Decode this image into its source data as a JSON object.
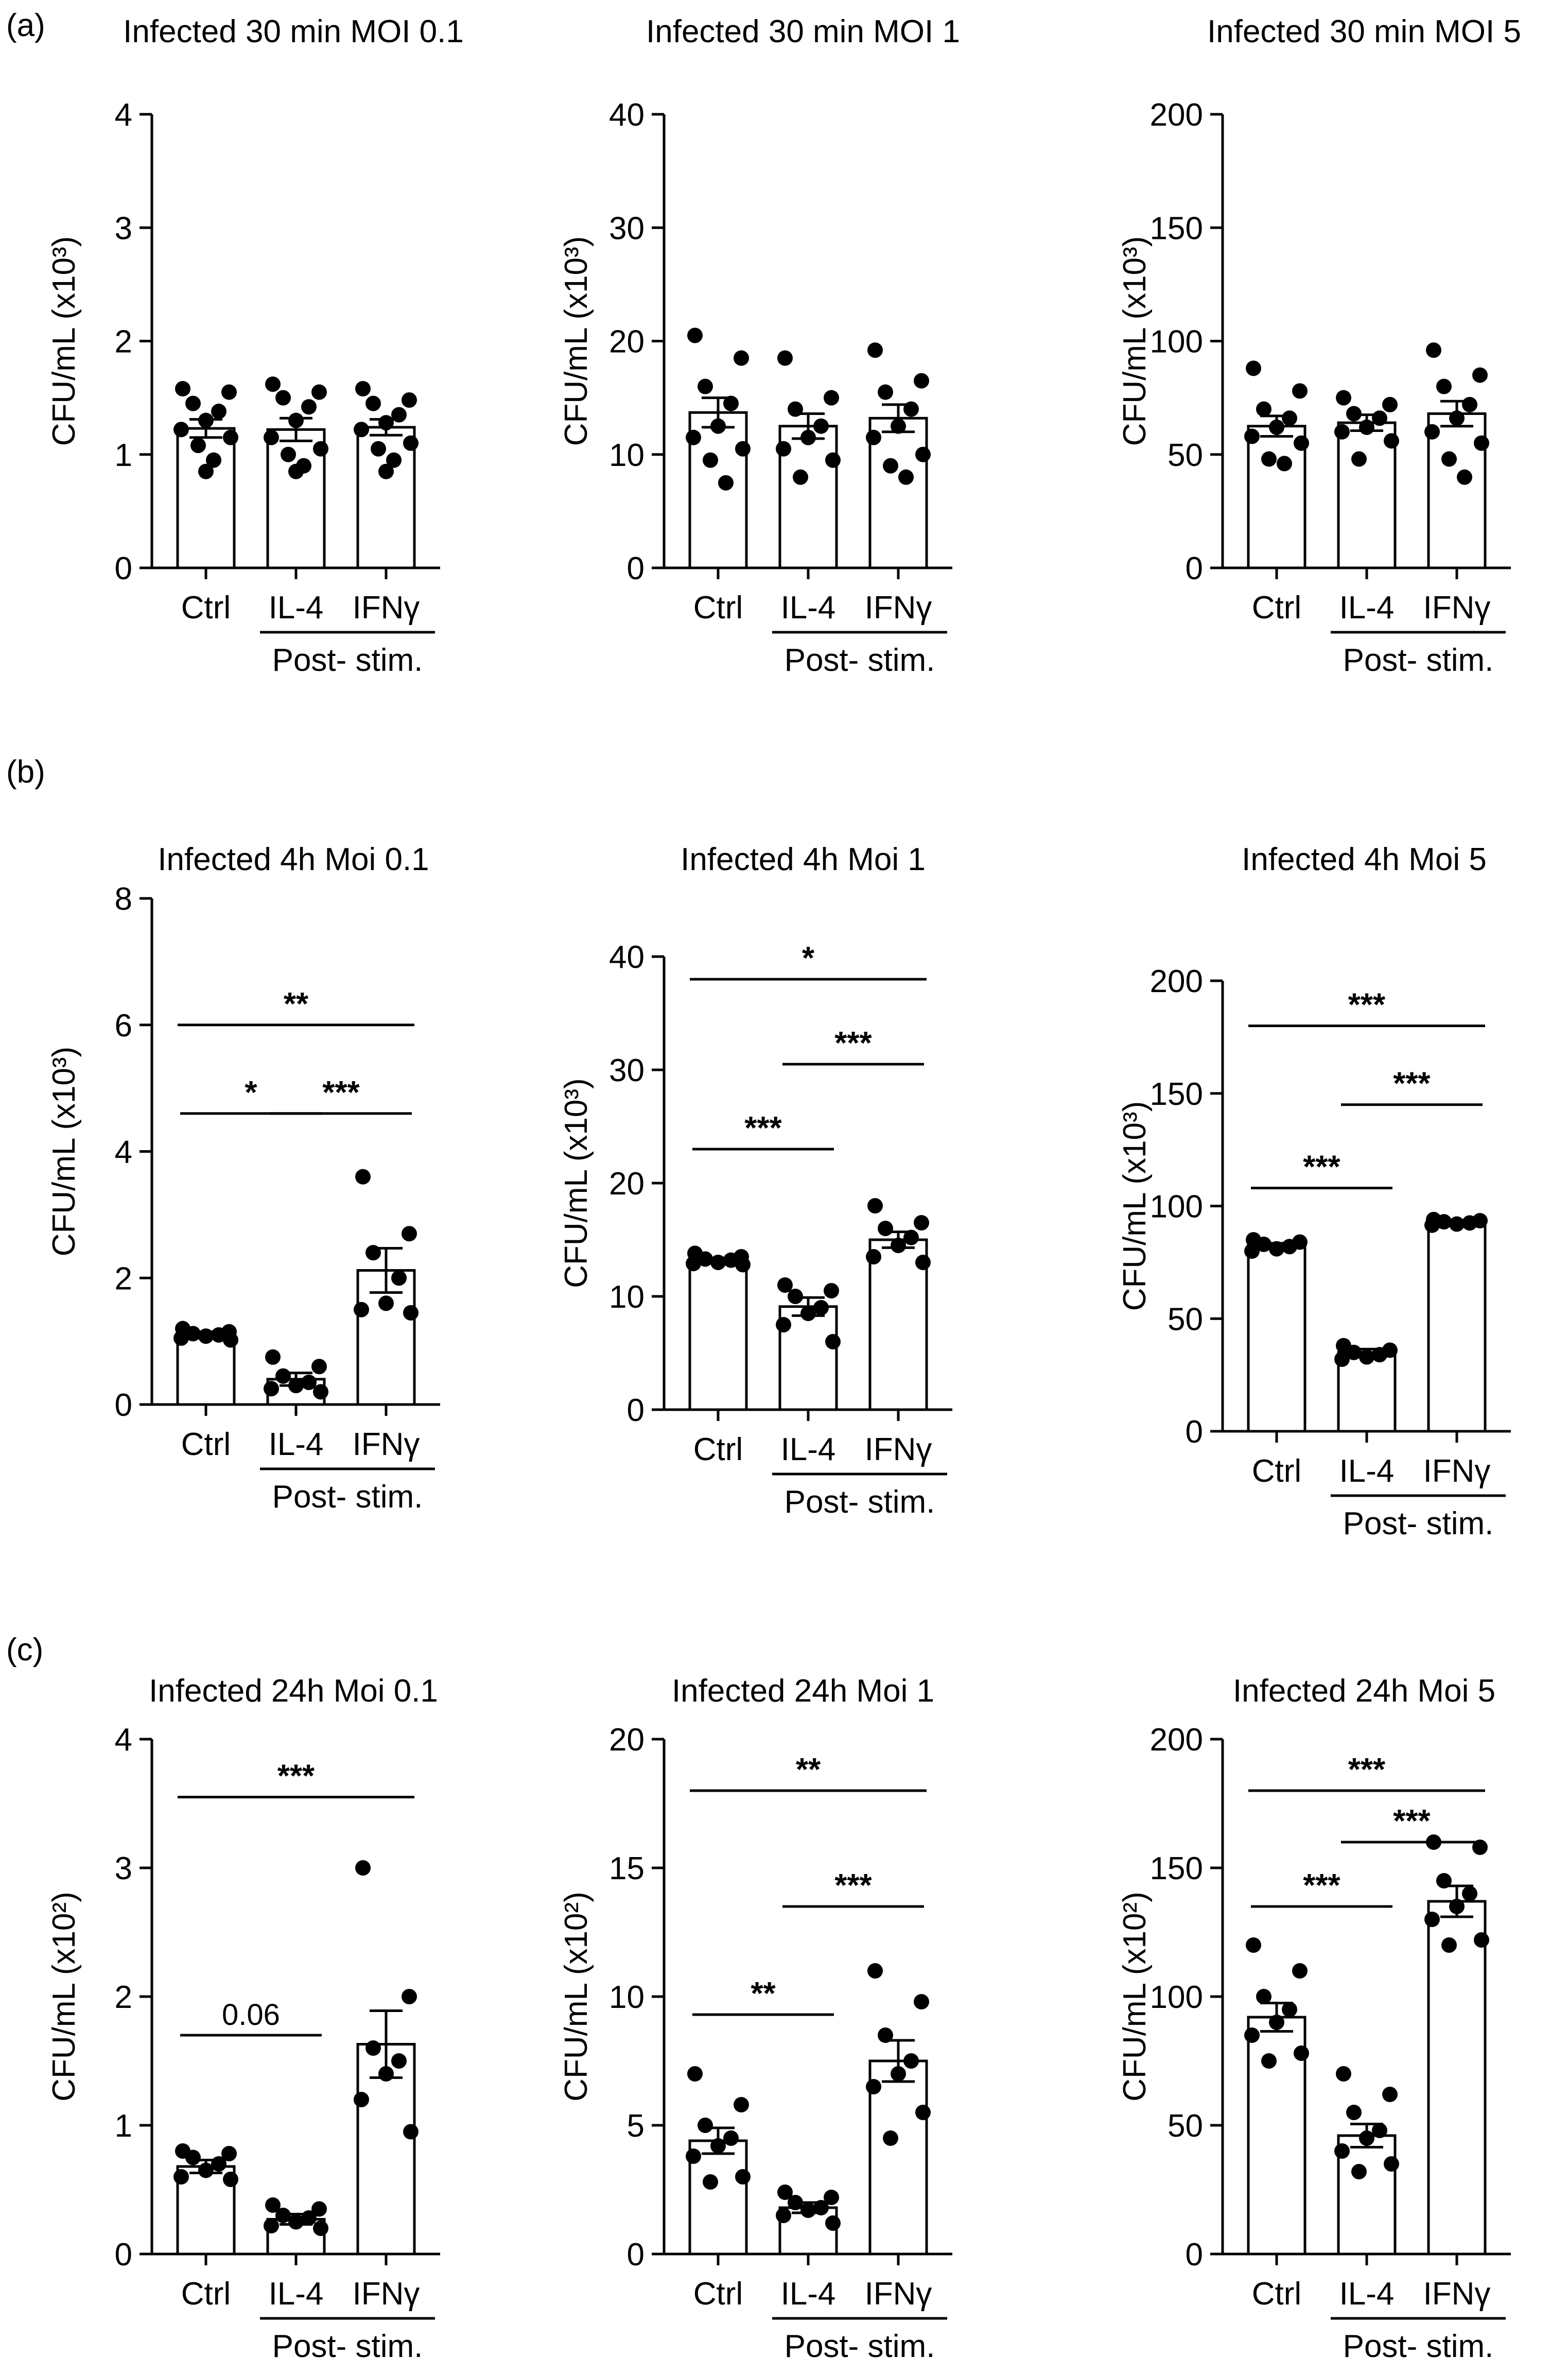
{
  "panel_labels": [
    "(a)",
    "(b)",
    "(c)"
  ],
  "group_label": "Post- stim.",
  "chart_data": [
    {
      "type": "bar",
      "title": "Infected 30 min MOI 0.1",
      "ylabel": "CFU/mL (x10³)",
      "ylim": [
        0,
        4
      ],
      "yticks": [
        "0",
        "1",
        "2",
        "3",
        "4"
      ],
      "categories": [
        "Ctrl",
        "IL-4",
        "IFNγ"
      ],
      "values": [
        1.23,
        1.22,
        1.24
      ],
      "errors": [
        0.08,
        0.1,
        0.07
      ],
      "points": [
        [
          1.58,
          1.55,
          1.45,
          1.38,
          1.3,
          1.22,
          1.15,
          1.08,
          0.95,
          0.85
        ],
        [
          1.62,
          1.55,
          1.5,
          1.42,
          1.3,
          1.15,
          1.05,
          1.0,
          0.9,
          0.85
        ],
        [
          1.58,
          1.48,
          1.45,
          1.35,
          1.28,
          1.22,
          1.1,
          1.05,
          0.95,
          0.85
        ]
      ],
      "significance": []
    },
    {
      "type": "bar",
      "title": "Infected 30 min MOI 1",
      "ylabel": "CFU/mL (x10³)",
      "ylim": [
        0,
        40
      ],
      "yticks": [
        "0",
        "10",
        "20",
        "30",
        "40"
      ],
      "categories": [
        "Ctrl",
        "IL-4",
        "IFNγ"
      ],
      "values": [
        13.7,
        12.5,
        13.2
      ],
      "errors": [
        1.3,
        1.1,
        1.2
      ],
      "points": [
        [
          20.5,
          18.5,
          16.0,
          14.5,
          12.5,
          11.5,
          10.5,
          9.5,
          7.5
        ],
        [
          18.5,
          15.0,
          14.0,
          12.5,
          11.5,
          10.5,
          9.5,
          8.0
        ],
        [
          19.2,
          16.5,
          15.5,
          14.0,
          12.5,
          11.5,
          10.0,
          9.0,
          8.0
        ]
      ],
      "significance": []
    },
    {
      "type": "bar",
      "title": "Infected 30 min MOI 5",
      "ylabel": "CFU/mL (x10³)",
      "ylim": [
        0,
        200
      ],
      "yticks": [
        "0",
        "50",
        "100",
        "150",
        "200"
      ],
      "categories": [
        "Ctrl",
        "IL-4",
        "IFNγ"
      ],
      "values": [
        62.5,
        64.0,
        68.0
      ],
      "errors": [
        4.5,
        3.5,
        5.5
      ],
      "points": [
        [
          88,
          78,
          70,
          66,
          62,
          58,
          55,
          48,
          46
        ],
        [
          75,
          72,
          68,
          66,
          62,
          60,
          56,
          48
        ],
        [
          96,
          85,
          80,
          72,
          66,
          60,
          55,
          48,
          40
        ]
      ],
      "significance": []
    },
    {
      "type": "bar",
      "title": "Infected 4h Moi 0.1",
      "ylabel": "CFU/mL (x10³)",
      "ylim": [
        0,
        8
      ],
      "yticks": [
        "0",
        "2",
        "4",
        "6",
        "8"
      ],
      "categories": [
        "Ctrl",
        "IL-4",
        "IFNγ"
      ],
      "values": [
        1.1,
        0.4,
        2.12
      ],
      "errors": [
        0.05,
        0.1,
        0.35
      ],
      "points": [
        [
          1.2,
          1.15,
          1.12,
          1.1,
          1.08,
          1.05,
          1.02
        ],
        [
          0.75,
          0.6,
          0.45,
          0.35,
          0.3,
          0.25,
          0.2
        ],
        [
          3.6,
          2.7,
          2.4,
          2.0,
          1.6,
          1.5,
          1.45
        ]
      ],
      "significance": [
        {
          "from": 0,
          "to": 2,
          "label": "**",
          "level": 6.0
        },
        {
          "from": 0,
          "to": 1,
          "label": "*",
          "level": 4.6
        },
        {
          "from": 1,
          "to": 2,
          "label": "***",
          "level": 4.6
        }
      ]
    },
    {
      "type": "bar",
      "title": "Infected 4h Moi 1",
      "ylabel": "CFU/mL (x10³)",
      "ylim": [
        0,
        40
      ],
      "yticks": [
        "0",
        "10",
        "20",
        "30",
        "40"
      ],
      "categories": [
        "Ctrl",
        "IL-4",
        "IFNγ"
      ],
      "values": [
        13.2,
        9.1,
        15.0
      ],
      "errors": [
        0.2,
        0.8,
        0.7
      ],
      "points": [
        [
          13.8,
          13.5,
          13.3,
          13.2,
          13.0,
          12.9,
          12.8
        ],
        [
          11.0,
          10.5,
          10.0,
          9.0,
          8.5,
          7.5,
          6.0
        ],
        [
          18.0,
          16.5,
          16.0,
          15.2,
          14.5,
          13.5,
          13.0
        ]
      ],
      "significance": [
        {
          "from": 0,
          "to": 2,
          "label": "*",
          "level": 38.0
        },
        {
          "from": 1,
          "to": 2,
          "label": "***",
          "level": 30.5
        },
        {
          "from": 0,
          "to": 1,
          "label": "***",
          "level": 23.0
        }
      ]
    },
    {
      "type": "bar",
      "title": "Infected 4h Moi 5",
      "ylabel": "CFU/mL (x10³)",
      "ylim": [
        0,
        200
      ],
      "yticks": [
        "0",
        "50",
        "100",
        "150",
        "200"
      ],
      "categories": [
        "Ctrl",
        "IL-4",
        "IFNγ"
      ],
      "values": [
        82.5,
        35.0,
        92.5
      ],
      "errors": [
        1.0,
        1.5,
        0.6
      ],
      "points": [
        [
          85,
          84,
          83,
          82,
          81,
          80
        ],
        [
          38,
          36,
          35,
          34,
          33,
          32
        ],
        [
          94,
          93.5,
          93,
          92.5,
          92,
          91.5
        ]
      ],
      "significance": [
        {
          "from": 0,
          "to": 2,
          "label": "***",
          "level": 180
        },
        {
          "from": 1,
          "to": 2,
          "label": "***",
          "level": 145
        },
        {
          "from": 0,
          "to": 1,
          "label": "***",
          "level": 108
        }
      ]
    },
    {
      "type": "bar",
      "title": "Infected 24h Moi 0.1",
      "ylabel": "CFU/mL (x10²)",
      "ylim": [
        0,
        4
      ],
      "yticks": [
        "0",
        "1",
        "2",
        "3",
        "4"
      ],
      "categories": [
        "Ctrl",
        "IL-4",
        "IFNγ"
      ],
      "values": [
        0.68,
        0.27,
        1.63
      ],
      "errors": [
        0.05,
        0.04,
        0.26
      ],
      "points": [
        [
          0.8,
          0.78,
          0.75,
          0.7,
          0.65,
          0.6,
          0.58
        ],
        [
          0.38,
          0.35,
          0.3,
          0.28,
          0.25,
          0.22,
          0.2
        ],
        [
          3.0,
          2.0,
          1.6,
          1.5,
          1.4,
          1.2,
          0.95
        ]
      ],
      "significance": [
        {
          "from": 0,
          "to": 2,
          "label": "***",
          "level": 3.55
        },
        {
          "from": 0,
          "to": 1,
          "label": "0.06",
          "level": 1.7,
          "plain": true
        }
      ]
    },
    {
      "type": "bar",
      "title": "Infected 24h Moi 1",
      "ylabel": "CFU/mL (x10²)",
      "ylim": [
        0,
        20
      ],
      "yticks": [
        "0",
        "5",
        "10",
        "15",
        "20"
      ],
      "categories": [
        "Ctrl",
        "IL-4",
        "IFNγ"
      ],
      "values": [
        4.4,
        1.8,
        7.5
      ],
      "errors": [
        0.5,
        0.2,
        0.8
      ],
      "points": [
        [
          7.0,
          5.8,
          5.0,
          4.5,
          4.2,
          3.8,
          3.0,
          2.8
        ],
        [
          2.4,
          2.2,
          2.0,
          1.8,
          1.7,
          1.5,
          1.2
        ],
        [
          11.0,
          9.8,
          8.5,
          7.5,
          7.0,
          6.5,
          5.5,
          4.5
        ]
      ],
      "significance": [
        {
          "from": 0,
          "to": 2,
          "label": "**",
          "level": 18.0
        },
        {
          "from": 1,
          "to": 2,
          "label": "***",
          "level": 13.5
        },
        {
          "from": 0,
          "to": 1,
          "label": "**",
          "level": 9.3
        }
      ]
    },
    {
      "type": "bar",
      "title": "Infected 24h Moi 5",
      "ylabel": "CFU/mL (x10²)",
      "ylim": [
        0,
        200
      ],
      "yticks": [
        "0",
        "50",
        "100",
        "150",
        "200"
      ],
      "categories": [
        "Ctrl",
        "IL-4",
        "IFNγ"
      ],
      "values": [
        92.0,
        46.0,
        137.0
      ],
      "errors": [
        5.5,
        4.5,
        6.0
      ],
      "points": [
        [
          120,
          110,
          100,
          95,
          90,
          85,
          78,
          75
        ],
        [
          70,
          62,
          55,
          48,
          45,
          40,
          35,
          32
        ],
        [
          160,
          158,
          145,
          140,
          135,
          130,
          122,
          120
        ]
      ],
      "significance": [
        {
          "from": 0,
          "to": 2,
          "label": "***",
          "level": 180
        },
        {
          "from": 1,
          "to": 2,
          "label": "***",
          "level": 160
        },
        {
          "from": 0,
          "to": 1,
          "label": "***",
          "level": 135
        }
      ]
    }
  ]
}
